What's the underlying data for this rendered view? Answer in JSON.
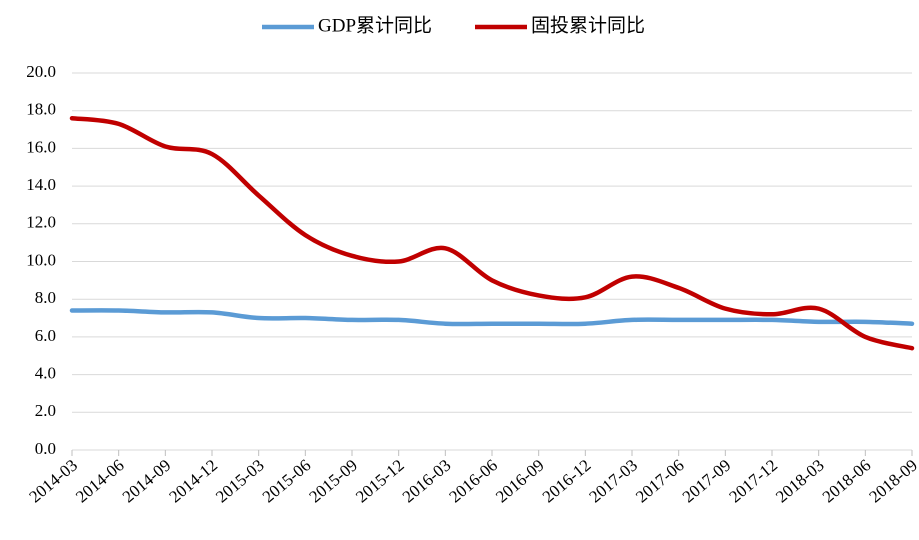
{
  "chart_data": {
    "type": "line",
    "categories": [
      "2014-03",
      "2014-06",
      "2014-09",
      "2014-12",
      "2015-03",
      "2015-06",
      "2015-09",
      "2015-12",
      "2016-03",
      "2016-06",
      "2016-09",
      "2016-12",
      "2017-03",
      "2017-06",
      "2017-09",
      "2017-12",
      "2018-03",
      "2018-06",
      "2018-09"
    ],
    "series": [
      {
        "name": "GDP累计同比",
        "color": "#5b9bd5",
        "values": [
          7.4,
          7.4,
          7.3,
          7.3,
          7.0,
          7.0,
          6.9,
          6.9,
          6.7,
          6.7,
          6.7,
          6.7,
          6.9,
          6.9,
          6.9,
          6.9,
          6.8,
          6.8,
          6.7
        ]
      },
      {
        "name": "固投累计同比",
        "color": "#c00000",
        "values": [
          17.6,
          17.3,
          16.1,
          15.7,
          13.5,
          11.4,
          10.3,
          10.0,
          10.7,
          9.0,
          8.2,
          8.1,
          9.2,
          8.6,
          7.5,
          7.2,
          7.5,
          6.0,
          5.4
        ]
      }
    ],
    "ylim": [
      0,
      20
    ],
    "yticks": [
      {
        "value": 0,
        "label": "0.0"
      },
      {
        "value": 2,
        "label": "2.0"
      },
      {
        "value": 4,
        "label": "4.0"
      },
      {
        "value": 6,
        "label": "6.0"
      },
      {
        "value": 8,
        "label": "8.0"
      },
      {
        "value": 10,
        "label": "10.0"
      },
      {
        "value": 12,
        "label": "12.0"
      },
      {
        "value": 14,
        "label": "14.0"
      },
      {
        "value": 16,
        "label": "16.0"
      },
      {
        "value": 18,
        "label": "18.0"
      },
      {
        "value": 20,
        "label": "20.0"
      }
    ],
    "grid": true,
    "legend": "top"
  }
}
